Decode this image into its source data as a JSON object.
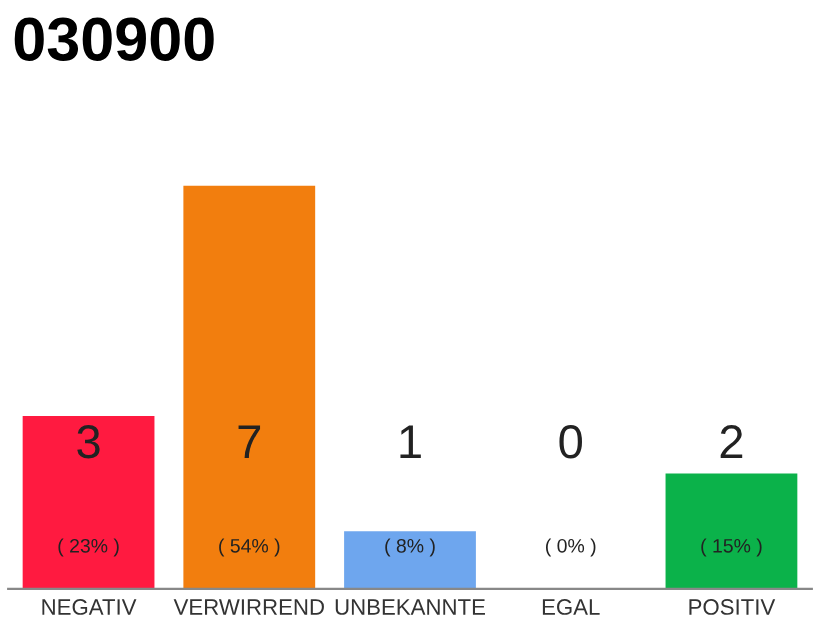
{
  "chart_data": {
    "type": "bar",
    "title": "030900",
    "categories": [
      "NEGATIV",
      "VERWIRREND",
      "UNBEKANNTE",
      "EGAL",
      "POSITIV"
    ],
    "values": [
      3,
      7,
      1,
      0,
      2
    ],
    "colors": [
      "#ff1a40",
      "#f27e0e",
      "#6ea6ee",
      "#cccccc",
      "#0bb24a"
    ],
    "data_labels": true,
    "annotations": [
      "( 23% )",
      "( 54% )",
      "( 8% )",
      "( 0% )",
      "( 15% )"
    ],
    "grid": false,
    "legend": false
  }
}
